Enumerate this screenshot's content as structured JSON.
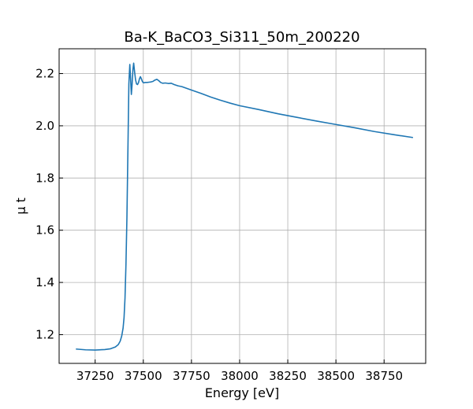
{
  "chart_data": {
    "type": "line",
    "title": "Ba-K_BaCO3_Si311_50m_200220",
    "xlabel": "Energy [eV]",
    "ylabel": "μ t",
    "xlim": [
      37063,
      38966
    ],
    "ylim": [
      1.09,
      2.295
    ],
    "grid": true,
    "x_ticks": [
      37250,
      37500,
      37750,
      38000,
      38250,
      38500,
      38750
    ],
    "x_tick_labels": [
      "37250",
      "37500",
      "37750",
      "38000",
      "38250",
      "38500",
      "38750"
    ],
    "y_ticks": [
      1.2,
      1.4,
      1.6,
      1.8,
      2.0,
      2.2
    ],
    "y_tick_labels": [
      "1.2",
      "1.4",
      "1.6",
      "1.8",
      "2.0",
      "2.2"
    ],
    "series": [
      {
        "color": "#1f77b4",
        "x": [
          37150,
          37200,
          37250,
          37300,
          37330,
          37355,
          37370,
          37380,
          37388,
          37395,
          37400,
          37405,
          37410,
          37415,
          37420,
          37425,
          37430,
          37434,
          37438,
          37442,
          37446,
          37450,
          37455,
          37460,
          37465,
          37470,
          37475,
          37480,
          37485,
          37490,
          37495,
          37500,
          37505,
          37510,
          37520,
          37530,
          37540,
          37550,
          37560,
          37570,
          37580,
          37590,
          37600,
          37615,
          37630,
          37645,
          37660,
          37680,
          37700,
          37750,
          37800,
          37850,
          37900,
          37950,
          38000,
          38100,
          38200,
          38300,
          38400,
          38500,
          38600,
          38700,
          38800,
          38900
        ],
        "y": [
          1.145,
          1.142,
          1.141,
          1.143,
          1.146,
          1.153,
          1.162,
          1.175,
          1.195,
          1.225,
          1.265,
          1.34,
          1.47,
          1.65,
          1.9,
          2.16,
          2.235,
          2.18,
          2.12,
          2.16,
          2.215,
          2.24,
          2.205,
          2.175,
          2.16,
          2.158,
          2.165,
          2.18,
          2.188,
          2.18,
          2.17,
          2.165,
          2.165,
          2.166,
          2.166,
          2.167,
          2.168,
          2.17,
          2.175,
          2.178,
          2.173,
          2.166,
          2.163,
          2.164,
          2.162,
          2.163,
          2.158,
          2.153,
          2.15,
          2.137,
          2.124,
          2.11,
          2.098,
          2.087,
          2.077,
          2.062,
          2.046,
          2.032,
          2.018,
          2.005,
          1.992,
          1.978,
          1.966,
          1.955
        ]
      }
    ]
  }
}
